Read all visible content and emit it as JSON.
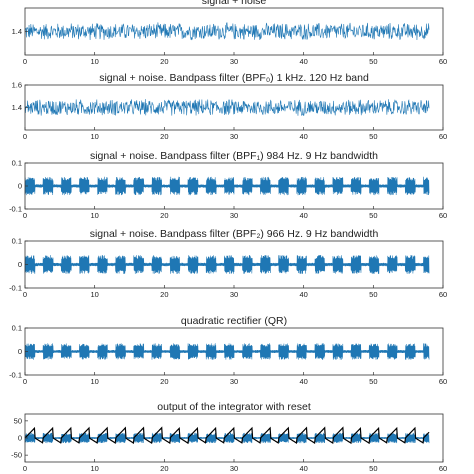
{
  "chart_data": [
    {
      "type": "line",
      "title": "signal + noise",
      "xlim": [
        0,
        60
      ],
      "ylim": [
        1.2,
        1.6
      ],
      "xticks": [
        "0",
        "10",
        "20",
        "30",
        "40",
        "50",
        "60"
      ],
      "yticks": [
        "1.4"
      ],
      "series": [
        {
          "color": "#1f77b4",
          "x_range": [
            0,
            58
          ],
          "center": 1.4,
          "amplitude": 0.08,
          "pattern": "noise"
        }
      ]
    },
    {
      "type": "line",
      "title": "signal + noise. Bandpass filter (BPF₀) 1 kHz. 120 Hz band",
      "xlim": [
        0,
        60
      ],
      "ylim": [
        1.2,
        1.6
      ],
      "xticks": [
        "0",
        "10",
        "20",
        "30",
        "40",
        "50",
        "60"
      ],
      "yticks": [
        "1.6",
        "1.4"
      ],
      "series": [
        {
          "color": "#1f77b4",
          "x_range": [
            0,
            58
          ],
          "center": 1.4,
          "amplitude": 0.08,
          "pattern": "noise"
        }
      ]
    },
    {
      "type": "line",
      "title": "signal + noise. Bandpass filter (BPF₁) 984 Hz. 9 Hz bandwidth",
      "xlim": [
        0,
        60
      ],
      "ylim": [
        -0.1,
        0.1
      ],
      "xticks": [
        "0",
        "10",
        "20",
        "30",
        "40",
        "50",
        "60"
      ],
      "yticks": [
        "0.1",
        "0",
        "-0.1"
      ],
      "series": [
        {
          "color": "#1f77b4",
          "x_range": [
            0,
            58
          ],
          "center": 0,
          "amplitude": 0.04,
          "pattern": "bursts"
        }
      ]
    },
    {
      "type": "line",
      "title": "signal + noise. Bandpass filter (BPF₂) 966 Hz. 9 Hz bandwidth",
      "xlim": [
        0,
        60
      ],
      "ylim": [
        -0.1,
        0.1
      ],
      "xticks": [
        "0",
        "10",
        "20",
        "30",
        "40",
        "50",
        "60"
      ],
      "yticks": [
        "0.1",
        "0",
        "-0.1"
      ],
      "series": [
        {
          "color": "#1f77b4",
          "x_range": [
            0,
            58
          ],
          "center": 0,
          "amplitude": 0.04,
          "pattern": "bursts"
        }
      ]
    },
    {
      "type": "line",
      "title": "quadratic rectifier (QR)",
      "xlim": [
        0,
        60
      ],
      "ylim": [
        -0.1,
        0.1
      ],
      "xticks": [
        "0",
        "10",
        "20",
        "30",
        "40",
        "50",
        "60"
      ],
      "yticks": [
        "0.1",
        "0",
        "-0.1"
      ],
      "series": [
        {
          "color": "#1f77b4",
          "x_range": [
            0,
            58
          ],
          "center": 0,
          "amplitude": 0.035,
          "pattern": "bursts"
        }
      ]
    },
    {
      "type": "line",
      "title": "output of the integrator with reset",
      "xlim": [
        0,
        60
      ],
      "ylim": [
        -70,
        70
      ],
      "xticks": [
        "0",
        "10",
        "20",
        "30",
        "40",
        "50",
        "60"
      ],
      "yticks": [
        "50",
        "0",
        "-50"
      ],
      "series": [
        {
          "color": "#1f77b4",
          "x_range": [
            0,
            58
          ],
          "center": 0,
          "amplitude": 15,
          "pattern": "bursts"
        },
        {
          "color": "#000000",
          "x_range": [
            0,
            58
          ],
          "center": 0,
          "amplitude": 30,
          "pattern": "integrator"
        }
      ]
    }
  ]
}
